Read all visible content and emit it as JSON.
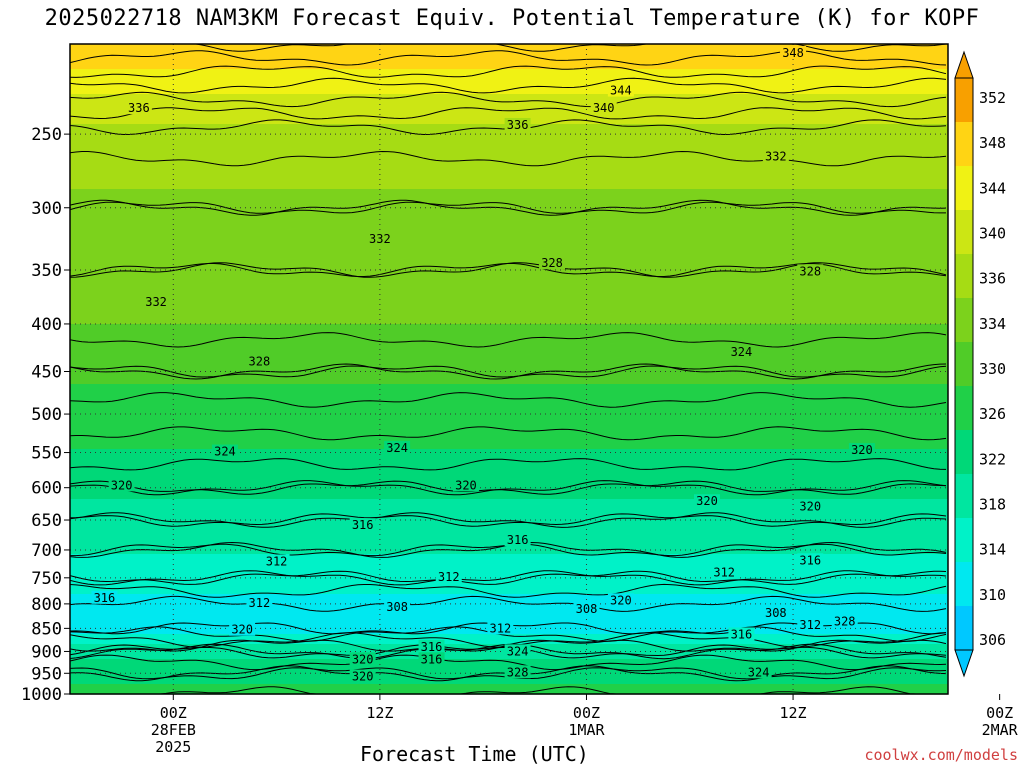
{
  "title": "2025022718 NAM3KM Forecast Equiv. Potential Temperature (K) for KOPF",
  "credit": "coolwx.com/models",
  "colors": {
    "ground": "#a0522d",
    "contour": "#000000",
    "grid": "#333333",
    "palette": [
      "#00c8ff",
      "#00e8f0",
      "#00f2c8",
      "#00e6a0",
      "#00d878",
      "#20d048",
      "#50cc28",
      "#7cd21c",
      "#a6dc14",
      "#cce614",
      "#f0f214",
      "#ffd414",
      "#f8a000"
    ]
  },
  "chart_data": {
    "type": "heatmap",
    "title": "2025022718 NAM3KM Forecast Equiv. Potential Temperature (K) for KOPF",
    "xlabel": "Forecast Time (UTC)",
    "ylabel": "",
    "variable": "Equivalent Potential Temperature (K)",
    "y_scale": "log-pressure (inverted)",
    "ylim": [
      1000,
      200
    ],
    "xlim_hours": [
      -6,
      45
    ],
    "y_ticks": [
      250,
      300,
      350,
      400,
      450,
      500,
      550,
      600,
      650,
      700,
      750,
      800,
      850,
      900,
      950,
      1000
    ],
    "x_ticks": [
      {
        "line1": "00Z",
        "line2": "28FEB",
        "line3": "2025"
      },
      {
        "line1": "12Z",
        "line2": "",
        "line3": ""
      },
      {
        "line1": "00Z",
        "line2": "1MAR",
        "line3": ""
      },
      {
        "line1": "12Z",
        "line2": "",
        "line3": ""
      },
      {
        "line1": "00Z",
        "line2": "2MAR",
        "line3": ""
      }
    ],
    "colorbar": {
      "ticks": [
        352,
        348,
        344,
        340,
        336,
        334,
        330,
        326,
        322,
        318,
        314,
        310,
        306
      ],
      "range": [
        304,
        354
      ]
    },
    "profile": {
      "pressure": [
        1000,
        950,
        900,
        850,
        800,
        750,
        700,
        650,
        600,
        550,
        500,
        450,
        400,
        350,
        300,
        250,
        200
      ],
      "theta_e": [
        324,
        322,
        318,
        310,
        310,
        314,
        316,
        318,
        320,
        323,
        325,
        328,
        331,
        332,
        334,
        337,
        350
      ]
    },
    "grid": true,
    "contour_labels": [
      {
        "text": "348",
        "hour": 36,
        "p": 205
      },
      {
        "text": "344",
        "hour": 26,
        "p": 225
      },
      {
        "text": "340",
        "hour": 25,
        "p": 235
      },
      {
        "text": "336",
        "hour": 20,
        "p": 245
      },
      {
        "text": "336",
        "hour": -2,
        "p": 235
      },
      {
        "text": "332",
        "hour": 35,
        "p": 265
      },
      {
        "text": "332",
        "hour": 12,
        "p": 325
      },
      {
        "text": "332",
        "hour": -1,
        "p": 380
      },
      {
        "text": "328",
        "hour": 22,
        "p": 345
      },
      {
        "text": "328",
        "hour": 37,
        "p": 352
      },
      {
        "text": "328",
        "hour": 5,
        "p": 440
      },
      {
        "text": "324",
        "hour": 33,
        "p": 430
      },
      {
        "text": "324",
        "hour": 3,
        "p": 550
      },
      {
        "text": "324",
        "hour": 13,
        "p": 545
      },
      {
        "text": "320",
        "hour": -3,
        "p": 598
      },
      {
        "text": "320",
        "hour": 17,
        "p": 598
      },
      {
        "text": "320",
        "hour": 40,
        "p": 548
      },
      {
        "text": "320",
        "hour": 31,
        "p": 622
      },
      {
        "text": "320",
        "hour": 37,
        "p": 630
      },
      {
        "text": "316",
        "hour": 11,
        "p": 660
      },
      {
        "text": "316",
        "hour": 20,
        "p": 685
      },
      {
        "text": "316",
        "hour": 37,
        "p": 720
      },
      {
        "text": "312",
        "hour": 6,
        "p": 722
      },
      {
        "text": "312",
        "hour": 16,
        "p": 750
      },
      {
        "text": "312",
        "hour": 32,
        "p": 742
      },
      {
        "text": "308",
        "hour": 13,
        "p": 808
      },
      {
        "text": "308",
        "hour": 35,
        "p": 820
      },
      {
        "text": "312",
        "hour": 5,
        "p": 800
      },
      {
        "text": "312",
        "hour": 19,
        "p": 852
      },
      {
        "text": "316",
        "hour": -4,
        "p": 790
      },
      {
        "text": "320",
        "hour": 26,
        "p": 795
      },
      {
        "text": "308",
        "hour": 24,
        "p": 812
      },
      {
        "text": "312",
        "hour": 37,
        "p": 845
      },
      {
        "text": "328",
        "hour": 39,
        "p": 838
      },
      {
        "text": "316",
        "hour": 33,
        "p": 865
      },
      {
        "text": "316",
        "hour": 15,
        "p": 892
      },
      {
        "text": "316",
        "hour": 15,
        "p": 920
      },
      {
        "text": "320",
        "hour": 4,
        "p": 855
      },
      {
        "text": "320",
        "hour": 11,
        "p": 920
      },
      {
        "text": "320",
        "hour": 11,
        "p": 960
      },
      {
        "text": "324",
        "hour": 20,
        "p": 902
      },
      {
        "text": "324",
        "hour": 34,
        "p": 950
      },
      {
        "text": "328",
        "hour": 20,
        "p": 950
      }
    ]
  }
}
